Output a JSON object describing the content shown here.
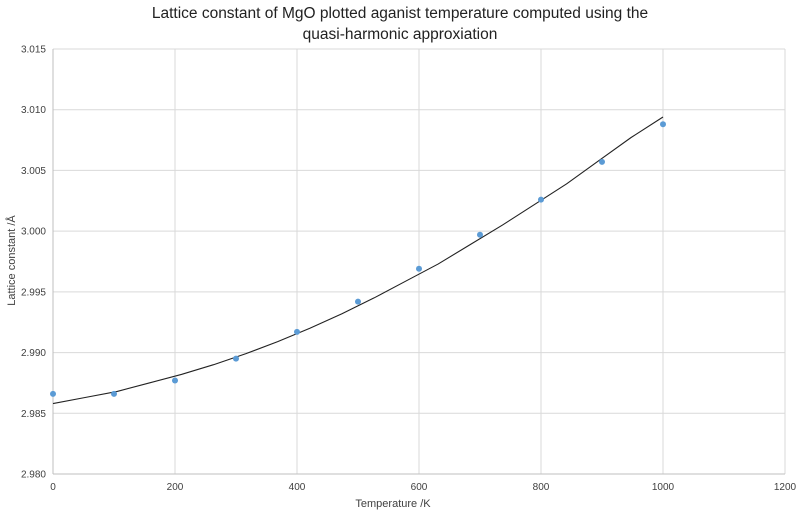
{
  "chart_data": {
    "type": "scatter",
    "title": "Lattice constant of MgO plotted aganist temperature computed using the quasi-harmonic approxiation",
    "xlabel": "Temperature /K",
    "ylabel": "Lattice constant /Å",
    "xlim": [
      0,
      1200
    ],
    "ylim": [
      2.98,
      3.015
    ],
    "xticks": [
      0,
      200,
      400,
      600,
      800,
      1000,
      1200
    ],
    "yticks": [
      2.98,
      2.985,
      2.99,
      2.995,
      3.0,
      3.005,
      3.01,
      3.015
    ],
    "xtick_labels": [
      "0",
      "200",
      "400",
      "600",
      "800",
      "1000",
      "1200"
    ],
    "ytick_labels": [
      "2.980",
      "2.985",
      "2.990",
      "2.995",
      "3.000",
      "3.005",
      "3.010",
      "3.015"
    ],
    "grid": true,
    "legend": "none",
    "marker_color": "#5b9bd5",
    "series": [
      {
        "x": [
          0,
          100,
          200,
          300,
          400,
          500,
          600,
          700,
          800,
          900,
          1000
        ],
        "y": [
          2.9866,
          2.9866,
          2.9877,
          2.9895,
          2.9917,
          2.9942,
          2.9969,
          2.9997,
          3.0026,
          3.0057,
          3.0088
        ]
      }
    ],
    "trendline": {
      "type": "quadratic",
      "color": "#222222",
      "x_range": [
        0,
        1000
      ],
      "y": [
        2.9858,
        2.9863,
        2.9868,
        2.9875,
        2.9882,
        2.989,
        2.9899,
        2.9909,
        2.992,
        2.9932,
        2.9945,
        2.9959,
        2.9973,
        2.9989,
        3.0005,
        3.0022,
        3.0039,
        3.0058,
        3.0077,
        3.0094
      ],
      "x": [
        0,
        52.6,
        105.3,
        157.9,
        210.5,
        263.2,
        315.8,
        368.4,
        421.1,
        473.7,
        526.3,
        578.9,
        631.6,
        684.2,
        736.8,
        789.5,
        842.1,
        894.7,
        947.4,
        1000
      ]
    }
  }
}
